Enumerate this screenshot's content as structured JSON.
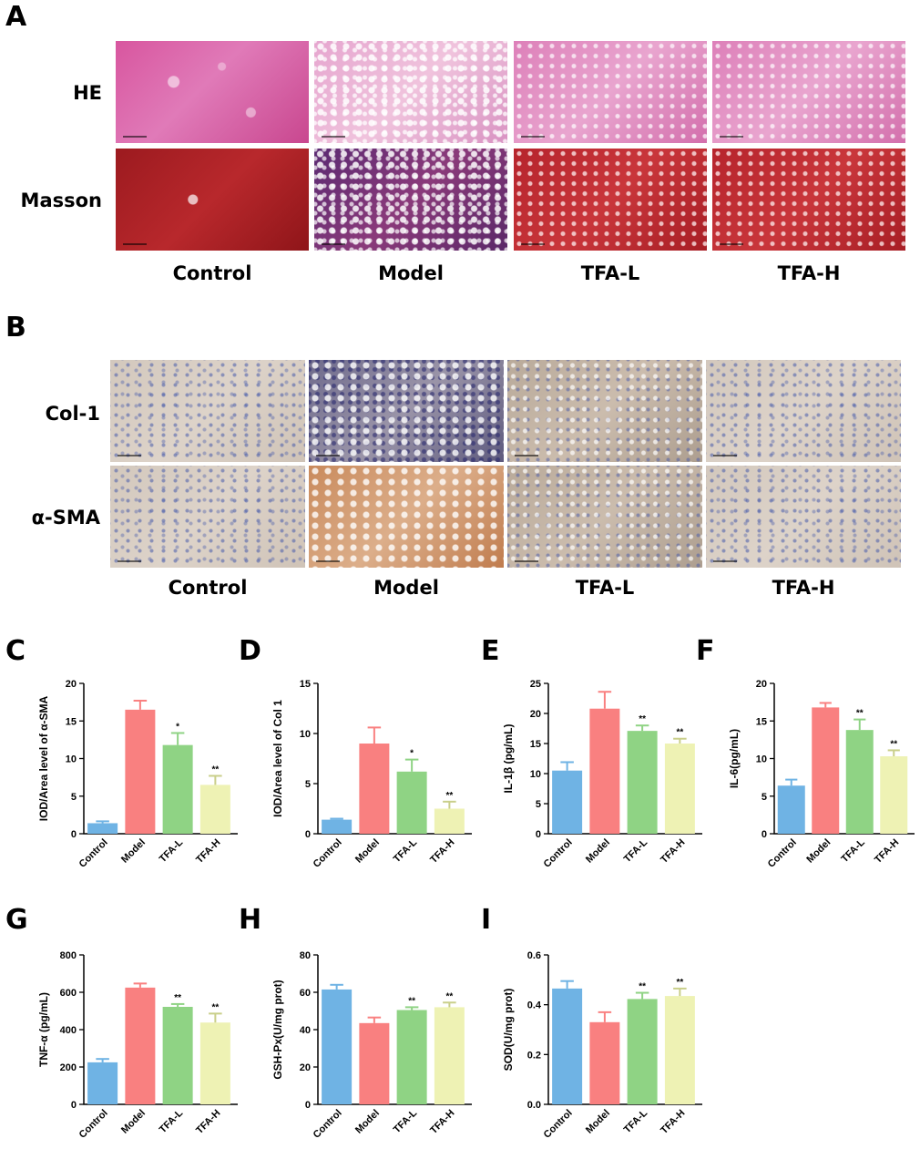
{
  "panel_letters": {
    "A": "A",
    "B": "B",
    "C": "C",
    "D": "D",
    "E": "E",
    "F": "F",
    "G": "G",
    "H": "H",
    "I": "I"
  },
  "panel_a": {
    "row_labels": [
      "HE",
      "Masson"
    ],
    "col_labels": [
      "Control",
      "Model",
      "TFA-L",
      "TFA-H"
    ]
  },
  "panel_b": {
    "row_labels": [
      "Col-1",
      "α-SMA"
    ],
    "col_labels": [
      "Control",
      "Model",
      "TFA-L",
      "TFA-H"
    ]
  },
  "colors": {
    "Control": "#6fb3e4",
    "Model": "#f98080",
    "TFA-L": "#8fd384",
    "TFA-H": "#eef2b4"
  },
  "chart_data": [
    {
      "id": "C",
      "type": "bar",
      "categories": [
        "Control",
        "Model",
        "TFA-L",
        "TFA-H"
      ],
      "values": [
        1.4,
        16.5,
        11.8,
        6.5
      ],
      "errors": [
        0.25,
        1.2,
        1.6,
        1.2
      ],
      "significance": [
        "",
        "",
        "*",
        "**"
      ],
      "ylabel": "IOD/Area level of α-SMA",
      "ylim": [
        0,
        20
      ],
      "yticks": [
        0,
        5,
        10,
        15,
        20
      ]
    },
    {
      "id": "D",
      "type": "bar",
      "categories": [
        "Control",
        "Model",
        "TFA-L",
        "TFA-H"
      ],
      "values": [
        1.4,
        9.0,
        6.2,
        2.5
      ],
      "errors": [
        0.1,
        1.6,
        1.2,
        0.7
      ],
      "significance": [
        "",
        "",
        "*",
        "**"
      ],
      "ylabel": "IOD/Area level of Col 1",
      "ylim": [
        0,
        15
      ],
      "yticks": [
        0,
        5,
        10,
        15
      ]
    },
    {
      "id": "E",
      "type": "bar",
      "categories": [
        "Control",
        "Model",
        "TFA-L",
        "TFA-H"
      ],
      "values": [
        10.5,
        20.8,
        17.1,
        15.0
      ],
      "errors": [
        1.4,
        2.8,
        0.9,
        0.8
      ],
      "significance": [
        "",
        "",
        "**",
        "**"
      ],
      "ylabel": "IL-1β (pg/mL)",
      "ylim": [
        0,
        25
      ],
      "yticks": [
        0,
        5,
        10,
        15,
        20,
        25
      ]
    },
    {
      "id": "F",
      "type": "bar",
      "categories": [
        "Control",
        "Model",
        "TFA-L",
        "TFA-H"
      ],
      "values": [
        6.4,
        16.8,
        13.8,
        10.3
      ],
      "errors": [
        0.8,
        0.6,
        1.4,
        0.8
      ],
      "significance": [
        "",
        "",
        "**",
        "**"
      ],
      "ylabel": "IL-6(pg/mL)",
      "ylim": [
        0,
        20
      ],
      "yticks": [
        0,
        5,
        10,
        15,
        20
      ]
    },
    {
      "id": "G",
      "type": "bar",
      "categories": [
        "Control",
        "Model",
        "TFA-L",
        "TFA-H"
      ],
      "values": [
        225,
        625,
        522,
        438
      ],
      "errors": [
        18,
        22,
        15,
        48
      ],
      "significance": [
        "",
        "",
        "**",
        "**"
      ],
      "ylabel": "TNF-α (pg/mL)",
      "ylim": [
        0,
        800
      ],
      "yticks": [
        0,
        200,
        400,
        600,
        800
      ]
    },
    {
      "id": "H",
      "type": "bar",
      "categories": [
        "Control",
        "Model",
        "TFA-L",
        "TFA-H"
      ],
      "values": [
        61.5,
        43.5,
        50.5,
        52.0
      ],
      "errors": [
        2.5,
        3.0,
        1.5,
        2.5
      ],
      "significance": [
        "",
        "",
        "**",
        "**"
      ],
      "ylabel": "GSH-Px(U/mg prot)",
      "ylim": [
        0,
        80
      ],
      "yticks": [
        0,
        20,
        40,
        60,
        80
      ]
    },
    {
      "id": "I",
      "type": "bar",
      "categories": [
        "Control",
        "Model",
        "TFA-L",
        "TFA-H"
      ],
      "values": [
        0.465,
        0.33,
        0.423,
        0.435
      ],
      "errors": [
        0.03,
        0.04,
        0.025,
        0.03
      ],
      "significance": [
        "",
        "",
        "**",
        "**"
      ],
      "ylabel": "SOD(U/mg prot)",
      "ylim": [
        0,
        0.6
      ],
      "yticks": [
        "0.0",
        "0.2",
        "0.4",
        "0.6"
      ]
    }
  ]
}
